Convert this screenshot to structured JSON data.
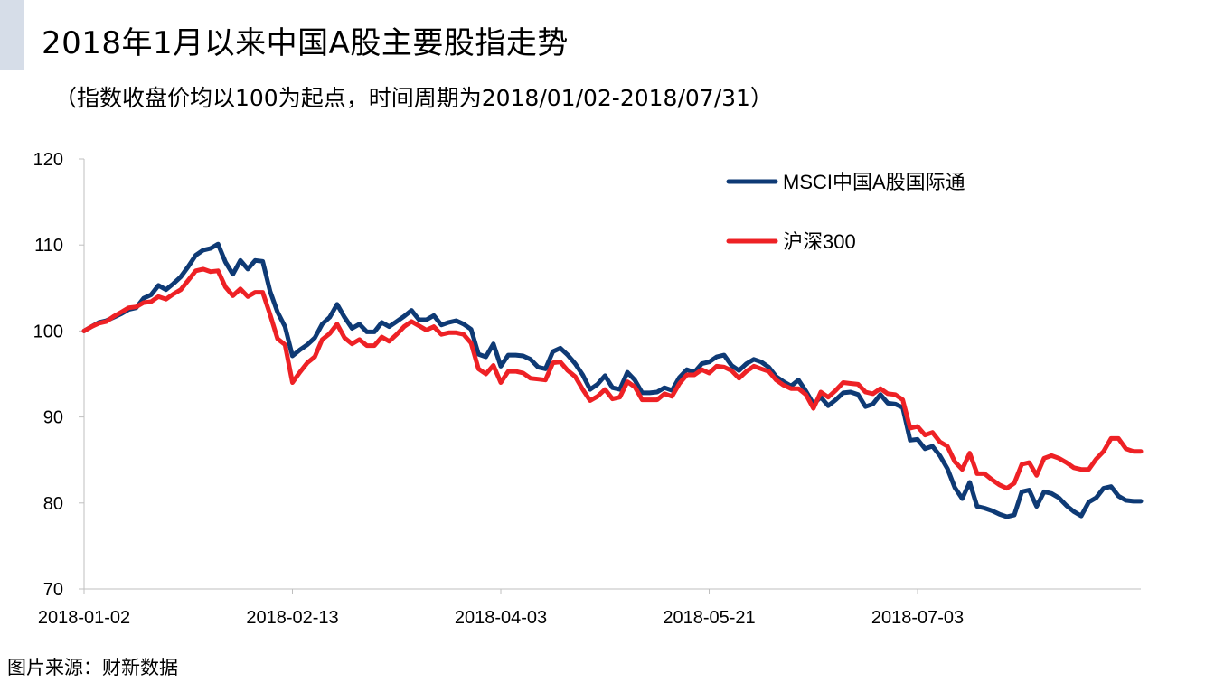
{
  "header": {
    "title": "2018年1月以来中国A股主要股指走势",
    "subtitle": "（指数收盘价均以100为起点，时间周期为2018/01/02-2018/07/31）"
  },
  "footer": {
    "source": "图片来源：财新数据"
  },
  "colors": {
    "accent_bar": "#d6dde8",
    "msci": "#0e3a75",
    "csi300": "#ee2125",
    "axis": "#bfbfbf"
  },
  "chart_data": {
    "type": "line",
    "title": "2018年1月以来中国A股主要股指走势",
    "xlabel": "",
    "ylabel": "",
    "ylim": [
      70,
      120
    ],
    "yticks": [
      70,
      80,
      90,
      100,
      110,
      120
    ],
    "xtick_labels": [
      {
        "label": "2018-01-02",
        "index": 0
      },
      {
        "label": "2018-02-13",
        "index": 28
      },
      {
        "label": "2018-04-03",
        "index": 56
      },
      {
        "label": "2018-05-21",
        "index": 84
      },
      {
        "label": "2018-07-03",
        "index": 112
      }
    ],
    "grid": false,
    "legend": "top-right",
    "series": [
      {
        "name": "MSCI中国A股国际通",
        "color": "#0e3a75",
        "values": [
          100.0,
          100.5,
          101.0,
          101.2,
          101.6,
          102.0,
          102.5,
          102.7,
          103.8,
          104.2,
          105.3,
          104.8,
          105.5,
          106.3,
          107.5,
          108.8,
          109.4,
          109.6,
          110.1,
          108.0,
          106.6,
          108.2,
          107.2,
          108.2,
          108.1,
          104.6,
          102.2,
          100.5,
          97.1,
          97.8,
          98.4,
          99.2,
          100.8,
          101.6,
          103.1,
          101.6,
          100.3,
          100.8,
          99.9,
          99.9,
          101.0,
          100.5,
          101.1,
          101.7,
          102.4,
          101.3,
          101.3,
          101.8,
          100.7,
          101.0,
          101.2,
          100.8,
          100.2,
          97.3,
          97.0,
          98.5,
          95.9,
          97.2,
          97.2,
          97.1,
          96.7,
          95.8,
          95.6,
          97.6,
          98.0,
          97.2,
          96.2,
          94.9,
          93.2,
          93.8,
          94.8,
          93.4,
          93.2,
          95.2,
          94.3,
          92.8,
          92.8,
          92.9,
          93.4,
          93.1,
          94.6,
          95.5,
          95.2,
          96.2,
          96.4,
          97.0,
          97.2,
          96.0,
          95.4,
          96.2,
          96.7,
          96.4,
          95.8,
          94.7,
          94.1,
          93.6,
          94.3,
          93.0,
          91.5,
          92.3,
          91.3,
          92.0,
          92.8,
          92.9,
          92.6,
          91.2,
          91.5,
          92.6,
          91.6,
          91.5,
          91.1,
          87.3,
          87.4,
          86.3,
          86.6,
          85.5,
          84.0,
          81.8,
          80.5,
          82.4,
          79.6,
          79.4,
          79.1,
          78.7,
          78.4,
          78.6,
          81.3,
          81.5,
          79.6,
          81.3,
          81.1,
          80.6,
          79.7,
          79.0,
          78.5,
          80.1,
          80.6,
          81.7,
          81.9,
          80.8,
          80.3,
          80.2,
          80.2
        ]
      },
      {
        "name": "沪深300",
        "color": "#ee2125",
        "values": [
          100.0,
          100.5,
          100.9,
          101.1,
          101.7,
          102.2,
          102.7,
          102.8,
          103.3,
          103.4,
          104.0,
          103.7,
          104.3,
          104.8,
          105.9,
          107.0,
          107.2,
          106.9,
          107.0,
          105.1,
          104.1,
          104.9,
          104.0,
          104.5,
          104.5,
          101.9,
          99.1,
          98.4,
          94.0,
          95.2,
          96.3,
          97.0,
          99.0,
          99.7,
          100.8,
          99.2,
          98.5,
          99.0,
          98.3,
          98.3,
          99.3,
          98.8,
          99.6,
          100.5,
          101.1,
          100.6,
          100.1,
          100.5,
          99.6,
          99.8,
          99.8,
          99.6,
          98.6,
          95.6,
          95.0,
          96.0,
          94.0,
          95.3,
          95.3,
          95.1,
          94.5,
          94.4,
          94.3,
          96.3,
          96.4,
          95.4,
          94.7,
          93.2,
          91.9,
          92.4,
          93.2,
          92.1,
          92.3,
          94.1,
          93.5,
          92.0,
          92.0,
          92.0,
          92.7,
          92.4,
          93.9,
          94.9,
          94.9,
          95.5,
          95.1,
          95.9,
          95.8,
          95.4,
          94.5,
          95.3,
          95.9,
          95.6,
          95.3,
          94.3,
          93.7,
          93.3,
          93.3,
          92.6,
          91.0,
          92.9,
          92.3,
          93.1,
          94.0,
          93.9,
          93.8,
          92.9,
          92.7,
          93.3,
          92.7,
          92.6,
          92.0,
          88.7,
          88.9,
          87.9,
          88.2,
          87.1,
          86.6,
          84.8,
          83.9,
          85.8,
          83.4,
          83.4,
          82.7,
          82.1,
          81.7,
          82.3,
          84.5,
          84.7,
          83.2,
          85.2,
          85.5,
          85.2,
          84.7,
          84.1,
          83.9,
          83.9,
          85.1,
          86.0,
          87.5,
          87.5,
          86.3,
          86.0,
          86.0
        ]
      }
    ]
  }
}
